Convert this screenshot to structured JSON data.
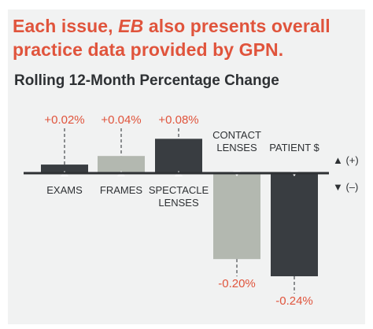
{
  "heading": {
    "prefix": "Each issue, ",
    "emphasis": "EB",
    "suffix": " also presents overall practice data provided by GPN."
  },
  "legend": {
    "positive": "▲ (+)",
    "negative": "▼ (–)"
  },
  "colors": {
    "accent": "#e0543c",
    "dark": "#393d41",
    "light": "#b3b8b0",
    "baseline": "#2e3134",
    "background": "#f1f2f2"
  },
  "chart_data": {
    "type": "bar",
    "title": "Rolling 12-Month Percentage Change",
    "categories": [
      "EXAMS",
      "FRAMES",
      "SPECTACLE LENSES",
      "CONTACT LENSES",
      "PATIENT $"
    ],
    "category_lines": [
      [
        "EXAMS"
      ],
      [
        "FRAMES"
      ],
      [
        "SPECTACLE",
        "LENSES"
      ],
      [
        "CONTACT",
        "LENSES"
      ],
      [
        "PATIENT $"
      ]
    ],
    "values": [
      0.02,
      0.04,
      0.08,
      -0.2,
      -0.24
    ],
    "value_labels": [
      "+0.02%",
      "+0.04%",
      "+0.08%",
      "-0.20%",
      "-0.24%"
    ],
    "bar_colors": [
      "#393d41",
      "#b3b8b0",
      "#393d41",
      "#b3b8b0",
      "#393d41"
    ],
    "unit": "%",
    "ylim": [
      -0.24,
      0.08
    ],
    "grid": false,
    "legend_placement": "right"
  }
}
